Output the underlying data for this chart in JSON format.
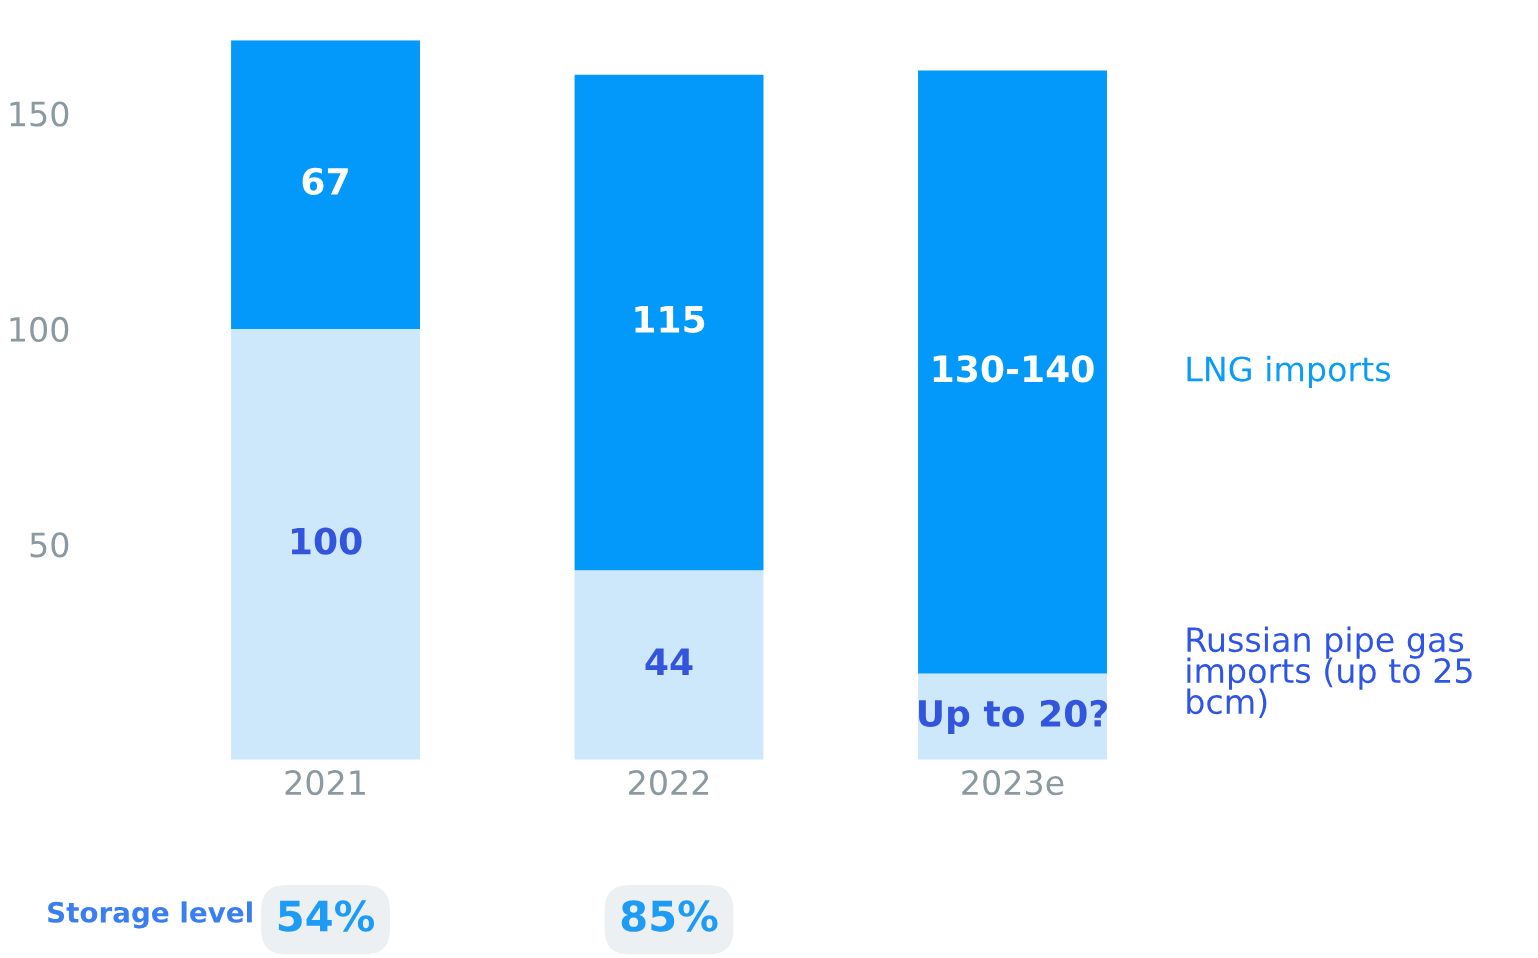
{
  "chart_data": {
    "type": "bar",
    "stacked": true,
    "categories": [
      "2021",
      "2022",
      "2023e"
    ],
    "series": [
      {
        "name": "Russian pipe gas imports (up to 25 bcm)",
        "color": "#cde8fb",
        "values": [
          100,
          44,
          20
        ],
        "value_labels": [
          "100",
          "44",
          "Up to 20?"
        ]
      },
      {
        "name": "LNG imports",
        "color": "#0399fb",
        "values": [
          67,
          115,
          140
        ],
        "value_labels": [
          "67",
          "115",
          "130-140"
        ]
      }
    ],
    "ylim": [
      0,
      167
    ],
    "yticks": [
      50,
      100,
      150
    ],
    "grid": false,
    "annotations": [
      "Storage level",
      "54%",
      "85%"
    ]
  }
}
